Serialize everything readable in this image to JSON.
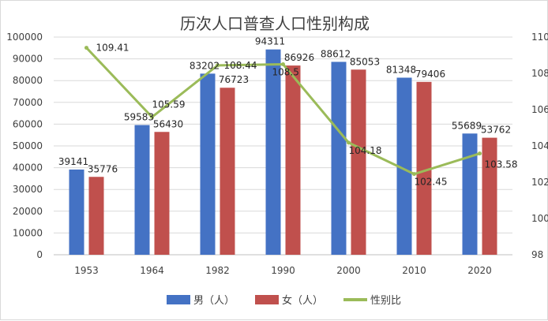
{
  "chart_data": {
    "type": "bar",
    "title": "历次人口普查人口性别构成",
    "categories": [
      "1953",
      "1964",
      "1982",
      "1990",
      "2000",
      "2010",
      "2020"
    ],
    "series": [
      {
        "name": "男（人）",
        "kind": "bar",
        "axis": "left",
        "color": "#4472C4",
        "values": [
          39141,
          59583,
          83202,
          94311,
          88612,
          81348,
          55689
        ]
      },
      {
        "name": "女（人）",
        "kind": "bar",
        "axis": "left",
        "color": "#C0504D",
        "values": [
          35776,
          56430,
          76723,
          86926,
          85053,
          79406,
          53762
        ]
      },
      {
        "name": "性别比",
        "kind": "line",
        "axis": "right",
        "color": "#9BBB59",
        "values": [
          109.41,
          105.59,
          108.44,
          108.5,
          104.18,
          102.45,
          103.58
        ]
      }
    ],
    "y_left": {
      "min": 0,
      "max": 100000,
      "step": 10000
    },
    "y_right": {
      "min": 98,
      "max": 110,
      "step": 2
    },
    "grid": true,
    "legend": "bottom"
  }
}
